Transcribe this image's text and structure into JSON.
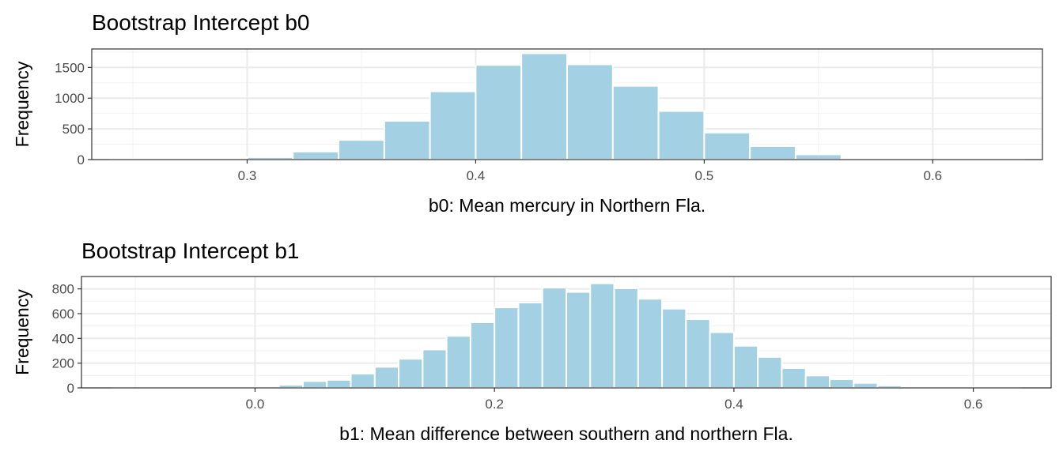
{
  "chart_data": [
    {
      "type": "bar",
      "title": "Bootstrap Intercept b0",
      "xlabel": "b0: Mean mercury in Northern Fla.",
      "ylabel": "Frequency",
      "xlim": [
        0.232,
        0.648
      ],
      "ylim": [
        0,
        1800
      ],
      "x_ticks": [
        0.3,
        0.4,
        0.5,
        0.6
      ],
      "x_tick_labels": [
        "0.3",
        "0.4",
        "0.5",
        "0.6"
      ],
      "y_ticks": [
        0,
        500,
        1000,
        1500
      ],
      "y_tick_labels": [
        "0",
        "500",
        "1000",
        "1500"
      ],
      "grid": true,
      "bar_color": "#a3d1e3",
      "bins": [
        {
          "x": 0.25,
          "count": 2
        },
        {
          "x": 0.27,
          "count": 3
        },
        {
          "x": 0.29,
          "count": 15
        },
        {
          "x": 0.31,
          "count": 40
        },
        {
          "x": 0.33,
          "count": 130
        },
        {
          "x": 0.35,
          "count": 320
        },
        {
          "x": 0.37,
          "count": 630
        },
        {
          "x": 0.39,
          "count": 1110
        },
        {
          "x": 0.41,
          "count": 1540
        },
        {
          "x": 0.43,
          "count": 1730
        },
        {
          "x": 0.45,
          "count": 1550
        },
        {
          "x": 0.47,
          "count": 1200
        },
        {
          "x": 0.49,
          "count": 790
        },
        {
          "x": 0.51,
          "count": 440
        },
        {
          "x": 0.53,
          "count": 220
        },
        {
          "x": 0.55,
          "count": 85
        },
        {
          "x": 0.57,
          "count": 15
        },
        {
          "x": 0.59,
          "count": 5
        },
        {
          "x": 0.61,
          "count": 2
        },
        {
          "x": 0.63,
          "count": 2
        }
      ]
    },
    {
      "type": "bar",
      "title": "Bootstrap Intercept b1",
      "xlabel": "b1: Mean difference between southern and northern Fla.",
      "ylabel": "Frequency",
      "xlim": [
        -0.145,
        0.665
      ],
      "ylim": [
        0,
        900
      ],
      "x_ticks": [
        0.0,
        0.2,
        0.4,
        0.6
      ],
      "x_tick_labels": [
        "0.0",
        "0.2",
        "0.4",
        "0.6"
      ],
      "y_ticks": [
        0,
        200,
        400,
        600,
        800
      ],
      "y_tick_labels": [
        "0",
        "200",
        "400",
        "600",
        "800"
      ],
      "grid": true,
      "bar_color": "#a3d1e3",
      "bins": [
        {
          "x": -0.11,
          "count": 2
        },
        {
          "x": -0.09,
          "count": 2
        },
        {
          "x": -0.07,
          "count": 2
        },
        {
          "x": -0.05,
          "count": 2
        },
        {
          "x": -0.03,
          "count": 2
        },
        {
          "x": -0.01,
          "count": 2
        },
        {
          "x": 0.01,
          "count": 6
        },
        {
          "x": 0.03,
          "count": 25
        },
        {
          "x": 0.05,
          "count": 55
        },
        {
          "x": 0.07,
          "count": 65
        },
        {
          "x": 0.09,
          "count": 115
        },
        {
          "x": 0.11,
          "count": 170
        },
        {
          "x": 0.13,
          "count": 235
        },
        {
          "x": 0.15,
          "count": 310
        },
        {
          "x": 0.17,
          "count": 420
        },
        {
          "x": 0.19,
          "count": 530
        },
        {
          "x": 0.21,
          "count": 650
        },
        {
          "x": 0.23,
          "count": 690
        },
        {
          "x": 0.25,
          "count": 810
        },
        {
          "x": 0.27,
          "count": 775
        },
        {
          "x": 0.29,
          "count": 845
        },
        {
          "x": 0.31,
          "count": 805
        },
        {
          "x": 0.33,
          "count": 720
        },
        {
          "x": 0.35,
          "count": 640
        },
        {
          "x": 0.37,
          "count": 555
        },
        {
          "x": 0.39,
          "count": 450
        },
        {
          "x": 0.41,
          "count": 340
        },
        {
          "x": 0.43,
          "count": 250
        },
        {
          "x": 0.45,
          "count": 160
        },
        {
          "x": 0.47,
          "count": 100
        },
        {
          "x": 0.49,
          "count": 70
        },
        {
          "x": 0.51,
          "count": 40
        },
        {
          "x": 0.53,
          "count": 20
        },
        {
          "x": 0.55,
          "count": 5
        },
        {
          "x": 0.57,
          "count": 2
        },
        {
          "x": 0.59,
          "count": 2
        },
        {
          "x": 0.61,
          "count": 2
        },
        {
          "x": 0.63,
          "count": 2
        }
      ]
    }
  ]
}
